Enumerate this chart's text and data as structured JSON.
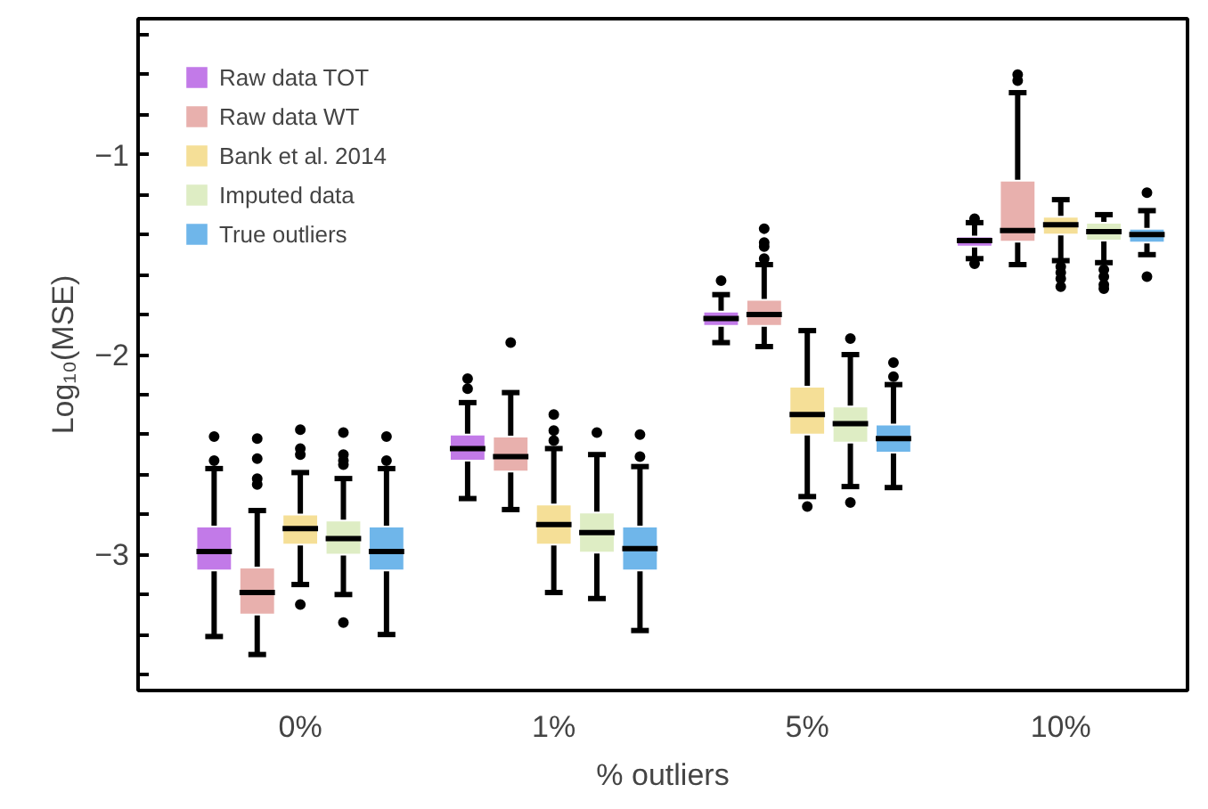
{
  "chart_data": {
    "type": "box",
    "xlabel": "% outliers",
    "ylabel": "Log₁₀(MSE)",
    "categories": [
      "0%",
      "1%",
      "5%",
      "10%"
    ],
    "ylim": [
      -3.68,
      -0.32
    ],
    "yticks": [
      {
        "value": -3.6,
        "label": null
      },
      {
        "value": -3.4,
        "label": null
      },
      {
        "value": -3.2,
        "label": null
      },
      {
        "value": -3,
        "label": "−3"
      },
      {
        "value": -2.8,
        "label": null
      },
      {
        "value": -2.6,
        "label": null
      },
      {
        "value": -2.4,
        "label": null
      },
      {
        "value": -2.2,
        "label": null
      },
      {
        "value": -2,
        "label": "−2"
      },
      {
        "value": -1.8,
        "label": null
      },
      {
        "value": -1.6,
        "label": null
      },
      {
        "value": -1.4,
        "label": null
      },
      {
        "value": -1.2,
        "label": null
      },
      {
        "value": -1,
        "label": "−1"
      },
      {
        "value": -0.8,
        "label": null
      },
      {
        "value": -0.6,
        "label": null
      },
      {
        "value": -0.4,
        "label": null
      }
    ],
    "grid": false,
    "legend": "top left",
    "series": [
      {
        "name": "Raw data TOT",
        "color": "#c27ae8",
        "boxes": [
          {
            "low": -3.41,
            "q1": -3.08,
            "median": -2.985,
            "q3": -2.86,
            "high": -2.57,
            "outliers": [
              -2.53,
              -2.41
            ]
          },
          {
            "low": -2.72,
            "q1": -2.53,
            "median": -2.47,
            "q3": -2.4,
            "high": -2.24,
            "outliers": [
              -2.17,
              -2.12
            ]
          },
          {
            "low": -1.94,
            "q1": -1.856,
            "median": -1.82,
            "q3": -1.785,
            "high": -1.7,
            "outliers": [
              -1.63
            ]
          },
          {
            "low": -1.52,
            "q1": -1.46,
            "median": -1.43,
            "q3": -1.41,
            "high": -1.34,
            "outliers": [
              -1.32,
              -1.545
            ]
          }
        ]
      },
      {
        "name": "Raw data WT",
        "color": "#e8b0ad",
        "boxes": [
          {
            "low": -3.5,
            "q1": -3.3,
            "median": -3.19,
            "q3": -3.065,
            "high": -2.78,
            "outliers": [
              -2.65,
              -2.62,
              -2.52,
              -2.42
            ]
          },
          {
            "low": -2.775,
            "q1": -2.585,
            "median": -2.51,
            "q3": -2.41,
            "high": -2.19,
            "outliers": [
              -1.94
            ]
          },
          {
            "low": -1.96,
            "q1": -1.856,
            "median": -1.8,
            "q3": -1.726,
            "high": -1.55,
            "outliers": [
              -1.52,
              -1.46,
              -1.44,
              -1.37
            ]
          },
          {
            "low": -1.55,
            "q1": -1.435,
            "median": -1.38,
            "q3": -1.13,
            "high": -0.69,
            "outliers": [
              -0.63,
              -0.6
            ]
          }
        ]
      },
      {
        "name": "Bank et al. 2014",
        "color": "#f5df97",
        "boxes": [
          {
            "low": -3.15,
            "q1": -2.95,
            "median": -2.87,
            "q3": -2.8,
            "high": -2.59,
            "outliers": [
              -2.5,
              -2.47,
              -2.375,
              -3.25
            ]
          },
          {
            "low": -3.19,
            "q1": -2.95,
            "median": -2.85,
            "q3": -2.75,
            "high": -2.47,
            "outliers": [
              -2.43,
              -2.38,
              -2.3
            ]
          },
          {
            "low": -2.71,
            "q1": -2.4,
            "median": -2.3,
            "q3": -2.16,
            "high": -1.88,
            "outliers": [
              -2.76
            ]
          },
          {
            "low": -1.53,
            "q1": -1.4,
            "median": -1.35,
            "q3": -1.31,
            "high": -1.225,
            "outliers": [
              -1.56,
              -1.59,
              -1.62,
              -1.66
            ]
          }
        ]
      },
      {
        "name": "Imputed data",
        "color": "#deedc4",
        "boxes": [
          {
            "low": -3.2,
            "q1": -3.0,
            "median": -2.92,
            "q3": -2.83,
            "high": -2.62,
            "outliers": [
              -2.55,
              -2.53,
              -2.5,
              -2.39,
              -3.34
            ]
          },
          {
            "low": -3.22,
            "q1": -2.99,
            "median": -2.89,
            "q3": -2.79,
            "high": -2.5,
            "outliers": [
              -2.39
            ]
          },
          {
            "low": -2.66,
            "q1": -2.44,
            "median": -2.345,
            "q3": -2.26,
            "high": -2.0,
            "outliers": [
              -1.92,
              -2.74
            ]
          },
          {
            "low": -1.54,
            "q1": -1.43,
            "median": -1.385,
            "q3": -1.34,
            "high": -1.3,
            "outliers": [
              -1.575,
              -1.61,
              -1.65,
              -1.67
            ]
          }
        ]
      },
      {
        "name": "True outliers",
        "color": "#6fb6ea",
        "boxes": [
          {
            "low": -3.4,
            "q1": -3.08,
            "median": -2.985,
            "q3": -2.86,
            "high": -2.57,
            "outliers": [
              -2.53,
              -2.41
            ]
          },
          {
            "low": -3.38,
            "q1": -3.08,
            "median": -2.97,
            "q3": -2.86,
            "high": -2.56,
            "outliers": [
              -2.51,
              -2.4
            ]
          },
          {
            "low": -2.665,
            "q1": -2.49,
            "median": -2.42,
            "q3": -2.35,
            "high": -2.15,
            "outliers": [
              -2.11,
              -2.04
            ]
          },
          {
            "low": -1.5,
            "q1": -1.44,
            "median": -1.4,
            "q3": -1.37,
            "high": -1.28,
            "outliers": [
              -1.19,
              -1.61
            ]
          }
        ]
      }
    ]
  }
}
